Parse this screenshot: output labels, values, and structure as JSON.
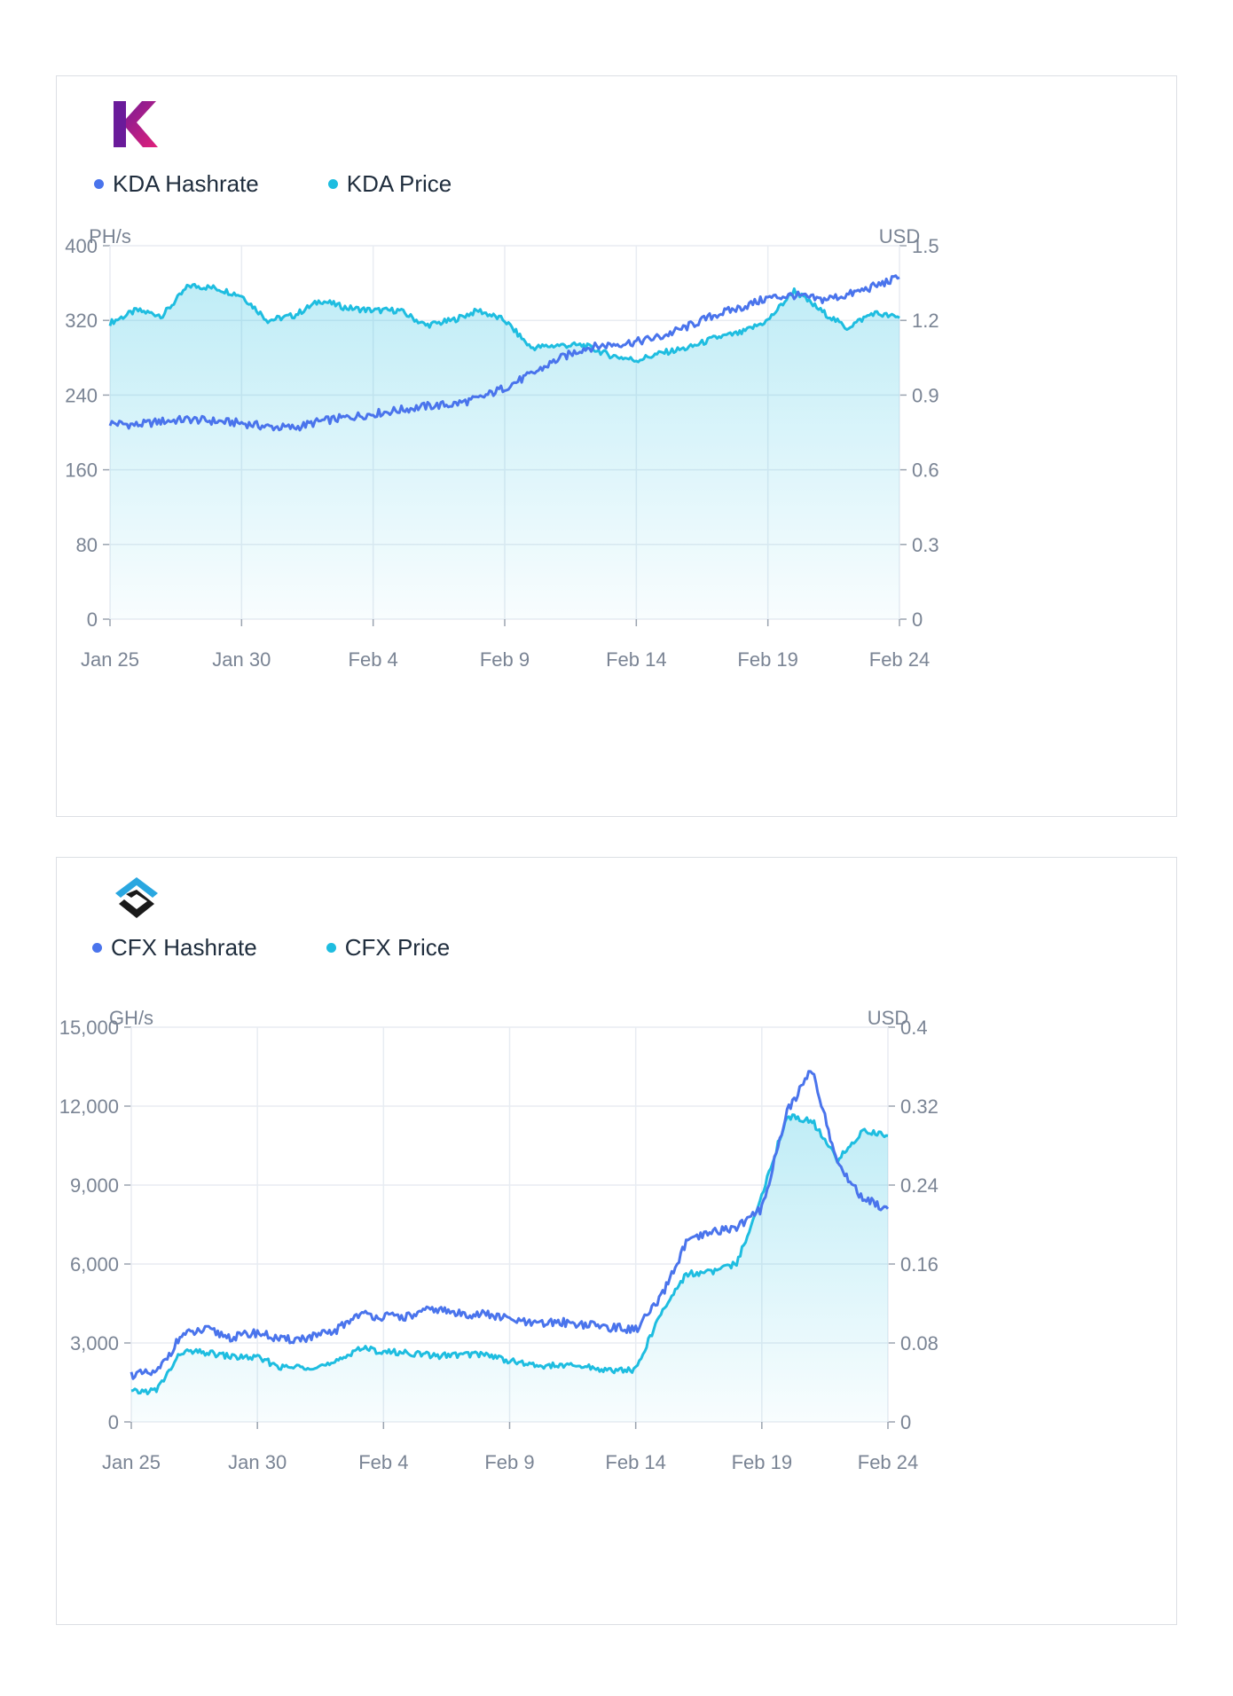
{
  "colors": {
    "hashrate": "#4a74ec",
    "price": "#1ebde0",
    "grid": "#e8ecf2",
    "axis": "#9aa3af"
  },
  "cards": [
    {
      "id": "kda",
      "logo": {
        "name": "kadena-logo",
        "text": "K"
      },
      "legend": [
        {
          "name": "hashrate",
          "label": "KDA Hashrate",
          "color": "#4a74ec"
        },
        {
          "name": "price",
          "label": "KDA Price",
          "color": "#1ebde0"
        }
      ],
      "left_unit": "PH/s",
      "right_unit": "USD",
      "left_ticks": [
        "0",
        "80",
        "160",
        "240",
        "320",
        "400"
      ],
      "right_ticks": [
        "0",
        "0.3",
        "0.6",
        "0.9",
        "1.2",
        "1.5"
      ],
      "x_ticks": [
        "Jan 25",
        "Jan 30",
        "Feb 4",
        "Feb 9",
        "Feb 14",
        "Feb 19",
        "Feb 24"
      ]
    },
    {
      "id": "cfx",
      "logo": {
        "name": "conflux-logo",
        "text": ""
      },
      "legend": [
        {
          "name": "hashrate",
          "label": "CFX Hashrate",
          "color": "#4a74ec"
        },
        {
          "name": "price",
          "label": "CFX Price",
          "color": "#1ebde0"
        }
      ],
      "left_unit": "GH/s",
      "right_unit": "USD",
      "left_ticks": [
        "0",
        "3,000",
        "6,000",
        "9,000",
        "12,000",
        "15,000"
      ],
      "right_ticks": [
        "0",
        "0.08",
        "0.16",
        "0.24",
        "0.32",
        "0.4"
      ],
      "x_ticks": [
        "Jan 25",
        "Jan 30",
        "Feb 4",
        "Feb 9",
        "Feb 14",
        "Feb 19",
        "Feb 24"
      ]
    }
  ],
  "chart_data": [
    {
      "type": "line",
      "title": "",
      "x_range": [
        "2022-01-25",
        "2022-02-24"
      ],
      "x_ticks": [
        "Jan 25",
        "Jan 30",
        "Feb 4",
        "Feb 9",
        "Feb 14",
        "Feb 19",
        "Feb 24"
      ],
      "y_left": {
        "label": "PH/s",
        "range": [
          0,
          400
        ]
      },
      "y_right": {
        "label": "USD",
        "range": [
          0,
          1.5
        ]
      },
      "grid": true,
      "legend_position": "top-left",
      "series": [
        {
          "name": "KDA Hashrate",
          "axis": "left",
          "color": "#4a74ec",
          "x": [
            "2022-01-25",
            "2022-01-26",
            "2022-01-27",
            "2022-01-28",
            "2022-01-29",
            "2022-01-30",
            "2022-01-31",
            "2022-02-01",
            "2022-02-02",
            "2022-02-03",
            "2022-02-04",
            "2022-02-05",
            "2022-02-06",
            "2022-02-07",
            "2022-02-08",
            "2022-02-09",
            "2022-02-10",
            "2022-02-11",
            "2022-02-12",
            "2022-02-13",
            "2022-02-14",
            "2022-02-15",
            "2022-02-16",
            "2022-02-17",
            "2022-02-18",
            "2022-02-19",
            "2022-02-20",
            "2022-02-21",
            "2022-02-22",
            "2022-02-23",
            "2022-02-24"
          ],
          "values": [
            210,
            208,
            212,
            214,
            212,
            210,
            206,
            205,
            212,
            216,
            220,
            224,
            228,
            230,
            236,
            248,
            262,
            278,
            290,
            294,
            297,
            303,
            314,
            326,
            334,
            344,
            347,
            342,
            347,
            356,
            366
          ]
        },
        {
          "name": "KDA Price",
          "axis": "right",
          "color": "#1ebde0",
          "area": true,
          "x": [
            "2022-01-25",
            "2022-01-26",
            "2022-01-27",
            "2022-01-28",
            "2022-01-29",
            "2022-01-30",
            "2022-01-31",
            "2022-02-01",
            "2022-02-02",
            "2022-02-03",
            "2022-02-04",
            "2022-02-05",
            "2022-02-06",
            "2022-02-07",
            "2022-02-08",
            "2022-02-09",
            "2022-02-10",
            "2022-02-11",
            "2022-02-12",
            "2022-02-13",
            "2022-02-14",
            "2022-02-15",
            "2022-02-16",
            "2022-02-17",
            "2022-02-18",
            "2022-02-19",
            "2022-02-20",
            "2022-02-21",
            "2022-02-22",
            "2022-02-23",
            "2022-02-24"
          ],
          "values": [
            1.19,
            1.24,
            1.22,
            1.34,
            1.33,
            1.3,
            1.2,
            1.22,
            1.28,
            1.25,
            1.24,
            1.24,
            1.18,
            1.2,
            1.24,
            1.2,
            1.09,
            1.1,
            1.1,
            1.06,
            1.04,
            1.07,
            1.09,
            1.13,
            1.15,
            1.2,
            1.32,
            1.24,
            1.17,
            1.23,
            1.21
          ]
        }
      ]
    },
    {
      "type": "line",
      "title": "",
      "x_range": [
        "2022-01-25",
        "2022-02-24"
      ],
      "x_ticks": [
        "Jan 25",
        "Jan 30",
        "Feb 4",
        "Feb 9",
        "Feb 14",
        "Feb 19",
        "Feb 24"
      ],
      "y_left": {
        "label": "GH/s",
        "range": [
          0,
          15000
        ]
      },
      "y_right": {
        "label": "USD",
        "range": [
          0,
          0.4
        ]
      },
      "grid": true,
      "legend_position": "top-left",
      "series": [
        {
          "name": "CFX Hashrate",
          "axis": "left",
          "color": "#4a74ec",
          "x": [
            "2022-01-25",
            "2022-01-26",
            "2022-01-27",
            "2022-01-28",
            "2022-01-29",
            "2022-01-30",
            "2022-01-31",
            "2022-02-01",
            "2022-02-02",
            "2022-02-03",
            "2022-02-04",
            "2022-02-05",
            "2022-02-06",
            "2022-02-07",
            "2022-02-08",
            "2022-02-09",
            "2022-02-10",
            "2022-02-11",
            "2022-02-12",
            "2022-02-13",
            "2022-02-14",
            "2022-02-15",
            "2022-02-16",
            "2022-02-17",
            "2022-02-18",
            "2022-02-19",
            "2022-02-20",
            "2022-02-21",
            "2022-02-22",
            "2022-02-23",
            "2022-02-24"
          ],
          "values": [
            1800,
            1850,
            3300,
            3500,
            3200,
            3400,
            3100,
            3200,
            3400,
            4100,
            4000,
            4000,
            4300,
            4100,
            4100,
            3900,
            3700,
            3800,
            3700,
            3600,
            3500,
            4700,
            6800,
            7200,
            7400,
            8100,
            11800,
            13400,
            9800,
            8500,
            8100
          ]
        },
        {
          "name": "CFX Price",
          "axis": "right",
          "color": "#1ebde0",
          "area": true,
          "x": [
            "2022-01-25",
            "2022-01-26",
            "2022-01-27",
            "2022-01-28",
            "2022-01-29",
            "2022-01-30",
            "2022-01-31",
            "2022-02-01",
            "2022-02-02",
            "2022-02-03",
            "2022-02-04",
            "2022-02-05",
            "2022-02-06",
            "2022-02-07",
            "2022-02-08",
            "2022-02-09",
            "2022-02-10",
            "2022-02-11",
            "2022-02-12",
            "2022-02-13",
            "2022-02-14",
            "2022-02-15",
            "2022-02-16",
            "2022-02-17",
            "2022-02-18",
            "2022-02-19",
            "2022-02-20",
            "2022-02-21",
            "2022-02-22",
            "2022-02-23",
            "2022-02-24"
          ],
          "values": [
            0.03,
            0.032,
            0.071,
            0.07,
            0.066,
            0.065,
            0.055,
            0.056,
            0.058,
            0.075,
            0.071,
            0.07,
            0.067,
            0.068,
            0.069,
            0.062,
            0.057,
            0.057,
            0.056,
            0.052,
            0.053,
            0.11,
            0.15,
            0.152,
            0.16,
            0.23,
            0.31,
            0.305,
            0.265,
            0.295,
            0.29
          ]
        }
      ]
    }
  ]
}
